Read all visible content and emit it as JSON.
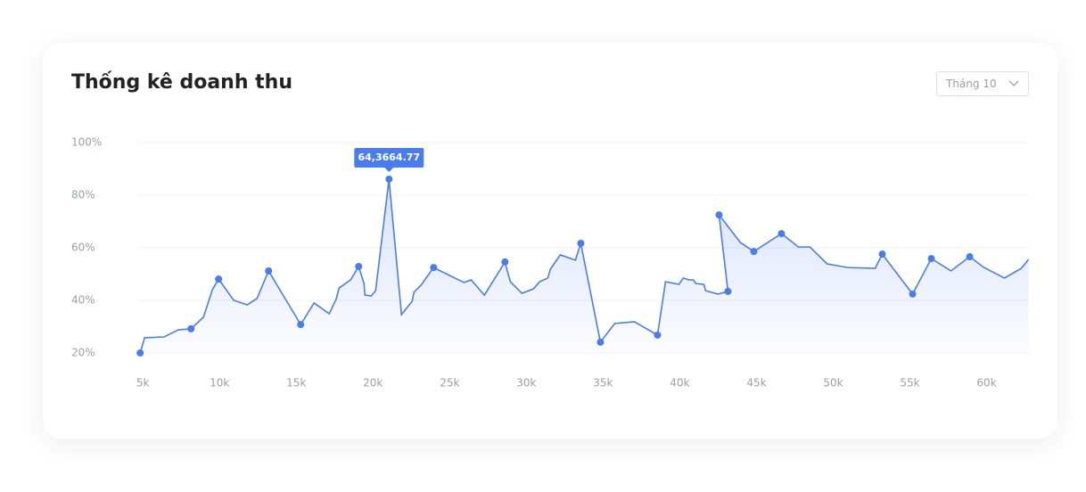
{
  "dropdown": {
    "label": "Tháng 10"
  },
  "chart_data": {
    "type": "line",
    "title": "Thống kê doanh thu",
    "x": [
      4830,
      5116,
      6395,
      7326,
      8140,
      8954,
      9535,
      9942,
      10930,
      11802,
      12442,
      13198,
      15291,
      16163,
      17151,
      17616,
      17791,
      18547,
      19070,
      19419,
      19477,
      19884,
      20175,
      21047,
      21861,
      22559,
      22675,
      23140,
      23954,
      25930,
      26395,
      27267,
      28605,
      28954,
      29710,
      30465,
      30872,
      31396,
      31570,
      32210,
      33198,
      33547,
      34826,
      35756,
      37035,
      38547,
      39070,
      39942,
      40233,
      40582,
      40872,
      41047,
      41570,
      41686,
      42482,
      43140,
      42558,
      43954,
      44826,
      46628,
      47733,
      48489,
      49594,
      50931,
      52733,
      53198,
      55175,
      56396,
      57675,
      58896,
      59826,
      61163,
      62268,
      62733
    ],
    "values": [
      20,
      25.8,
      26.1,
      28.8,
      29.2,
      33.6,
      44.1,
      48.1,
      40.0,
      38.3,
      40.7,
      51.2,
      30.8,
      39.0,
      34.9,
      40.7,
      44.7,
      47.8,
      52.9,
      46.4,
      42.0,
      41.7,
      43.7,
      86.1,
      34.6,
      39.7,
      43.1,
      45.8,
      52.5,
      46.8,
      47.8,
      42.0,
      54.6,
      47.1,
      42.7,
      44.4,
      47.1,
      48.5,
      51.9,
      57.3,
      55.3,
      61.7,
      24.1,
      31.2,
      31.9,
      26.8,
      47.1,
      46.1,
      48.5,
      47.8,
      47.8,
      46.4,
      46.1,
      43.7,
      42.4,
      43.4,
      72.5,
      62.0,
      58.6,
      65.4,
      60.3,
      60.3,
      53.9,
      52.5,
      52.2,
      57.6,
      42.4,
      55.9,
      51.2,
      56.6,
      52.5,
      48.5,
      52.2,
      55.6
    ],
    "markers": [
      0,
      4,
      7,
      11,
      12,
      18,
      23,
      28,
      32,
      41,
      42,
      45,
      55,
      56,
      58,
      59,
      65,
      66,
      67,
      69
    ],
    "color": "#4a7cec",
    "annotation": {
      "text": "64,3664.77",
      "index": 23
    },
    "xlim": [
      4700,
      62700
    ],
    "xticks": [
      {
        "value": 5000,
        "label": "5k"
      },
      {
        "value": 10000,
        "label": "10k"
      },
      {
        "value": 15000,
        "label": "15k"
      },
      {
        "value": 20000,
        "label": "20k"
      },
      {
        "value": 25000,
        "label": "25k"
      },
      {
        "value": 30000,
        "label": "30k"
      },
      {
        "value": 35000,
        "label": "35k"
      },
      {
        "value": 40000,
        "label": "40k"
      },
      {
        "value": 45000,
        "label": "45k"
      },
      {
        "value": 50000,
        "label": "50k"
      },
      {
        "value": 55000,
        "label": "55k"
      },
      {
        "value": 60000,
        "label": "60k"
      }
    ],
    "ylim": [
      20,
      100
    ],
    "yticks": [
      {
        "value": 20,
        "label": "20%"
      },
      {
        "value": 40,
        "label": "40%"
      },
      {
        "value": 60,
        "label": "60%"
      },
      {
        "value": 80,
        "label": "80%"
      },
      {
        "value": 100,
        "label": "100%"
      }
    ],
    "grid": true
  }
}
